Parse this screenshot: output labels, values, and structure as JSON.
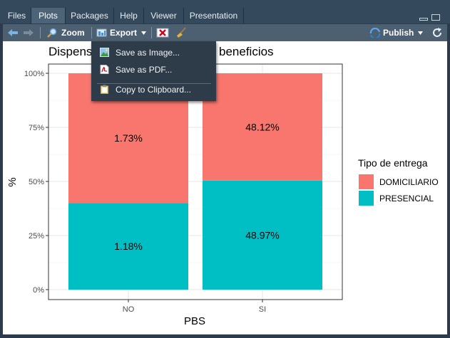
{
  "tabs": [
    {
      "label": "Files"
    },
    {
      "label": "Plots",
      "active": true
    },
    {
      "label": "Packages"
    },
    {
      "label": "Help"
    },
    {
      "label": "Viewer"
    },
    {
      "label": "Presentation"
    }
  ],
  "toolbar": {
    "zoom_label": "Zoom",
    "export_label": "Export",
    "publish_label": "Publish"
  },
  "export_menu": {
    "items": [
      {
        "label": "Save as Image...",
        "icon": "image-icon"
      },
      {
        "label": "Save as PDF...",
        "icon": "pdf-icon"
      },
      {
        "label": "Copy to Clipboard...",
        "icon": "clipboard-icon"
      }
    ]
  },
  "colors": {
    "domiciliario": "#f8766d",
    "presencial": "#00bfc4",
    "toolbar": "#4c6072",
    "menu": "#2e3b48"
  },
  "chart_data": {
    "type": "bar",
    "stacked": true,
    "title_visible_fragments": [
      "Dispens",
      "beneficios"
    ],
    "categories": [
      "NO",
      "SI"
    ],
    "series": [
      {
        "name": "PRESENCIAL",
        "values": [
          1.18,
          48.97
        ],
        "share_pct": [
          40,
          50.4
        ]
      },
      {
        "name": "DOMICILIARIO",
        "values": [
          1.73,
          48.12
        ],
        "share_pct": [
          60,
          49.6
        ]
      }
    ],
    "bar_labels": {
      "PRESENCIAL": [
        "1.18%",
        "48.97%"
      ],
      "DOMICILIARIO": [
        "1.73%",
        "48.12%"
      ]
    },
    "xlabel": "PBS",
    "ylabel": "%",
    "y_ticks": [
      "0%",
      "25%",
      "50%",
      "75%",
      "100%"
    ],
    "ylim": [
      0,
      100
    ],
    "legend_title": "Tipo de entrega",
    "legend_position": "right",
    "grid": true
  }
}
